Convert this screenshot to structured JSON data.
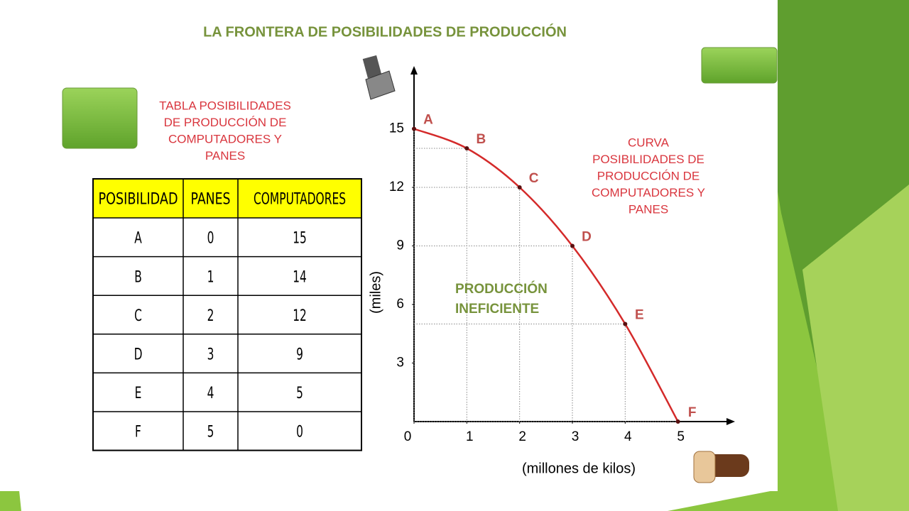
{
  "title": "LA FRONTERA DE POSIBILIDADES DE PRODUCCIÓN",
  "table": {
    "title": [
      "TABLA POSIBILIDADES",
      "DE PRODUCCIÓN DE",
      "COMPUTADORES Y",
      "PANES"
    ],
    "header": [
      "POSIBILIDAD",
      "PANES",
      "COMPUTADORES"
    ],
    "rows": [
      [
        "A",
        0,
        15
      ],
      [
        "B",
        1,
        14
      ],
      [
        "C",
        2,
        12
      ],
      [
        "D",
        3,
        9
      ],
      [
        "E",
        4,
        5
      ],
      [
        "F",
        5,
        0
      ]
    ]
  },
  "chart_data": {
    "type": "line",
    "x": [
      0,
      1,
      2,
      3,
      4,
      5
    ],
    "values": [
      15,
      14,
      12,
      9,
      5,
      0
    ],
    "point_labels": [
      "A",
      "B",
      "C",
      "D",
      "E",
      "F"
    ],
    "color": "#d42a2a",
    "xlim": [
      0,
      6
    ],
    "ylim": [
      0,
      18
    ],
    "xticks": [
      0,
      1,
      2,
      3,
      4,
      5
    ],
    "yticks": [
      3,
      6,
      9,
      12,
      15
    ],
    "y_label": "(miles)",
    "x_label": "(millones de kilos)",
    "annotation": [
      "PRODUCCIÓN",
      "INEFICIENTE"
    ],
    "curve_title": [
      "CURVA",
      "POSIBILIDADES DE",
      "PRODUCCIÓN DE",
      "COMPUTADORES Y",
      "PANES"
    ]
  }
}
